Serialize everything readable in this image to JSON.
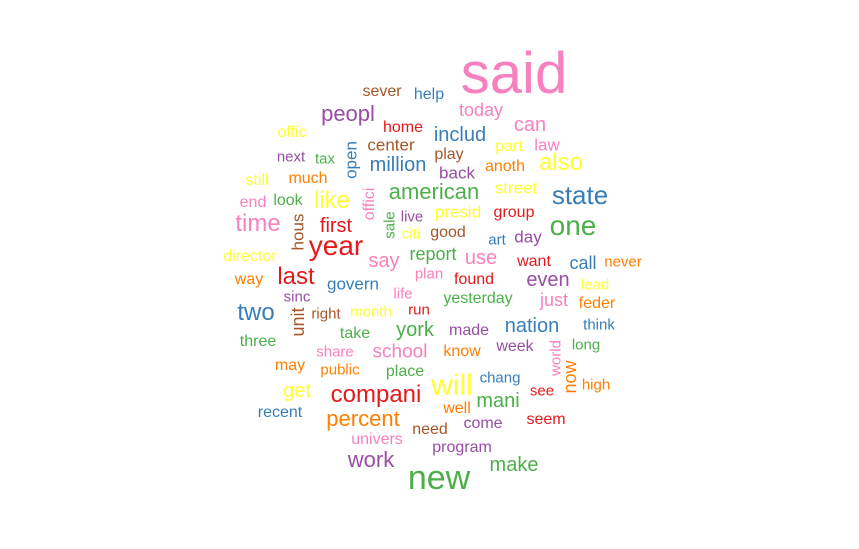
{
  "palette": {
    "pink": "#F781BF",
    "red": "#E41A1C",
    "blue": "#377EB8",
    "green": "#4DAF4A",
    "purple": "#984EA3",
    "orange": "#FF7F00",
    "yellow": "#FFFF33",
    "brown": "#A65628"
  },
  "words": [
    {
      "text": "said",
      "color": "pink"
    },
    {
      "text": "new",
      "color": "green"
    },
    {
      "text": "year",
      "color": "red"
    },
    {
      "text": "will",
      "color": "yellow"
    },
    {
      "text": "one",
      "color": "green"
    },
    {
      "text": "state",
      "color": "blue"
    },
    {
      "text": "compani",
      "color": "red"
    },
    {
      "text": "time",
      "color": "pink"
    },
    {
      "text": "also",
      "color": "yellow"
    },
    {
      "text": "american",
      "color": "green"
    },
    {
      "text": "two",
      "color": "blue"
    },
    {
      "text": "last",
      "color": "red"
    },
    {
      "text": "like",
      "color": "yellow"
    },
    {
      "text": "peopl",
      "color": "purple"
    },
    {
      "text": "percent",
      "color": "orange"
    },
    {
      "text": "work",
      "color": "purple"
    },
    {
      "text": "can",
      "color": "pink"
    },
    {
      "text": "million",
      "color": "blue"
    },
    {
      "text": "includ",
      "color": "blue"
    },
    {
      "text": "first",
      "color": "red"
    },
    {
      "text": "nation",
      "color": "blue"
    },
    {
      "text": "york",
      "color": "green"
    },
    {
      "text": "mani",
      "color": "green"
    },
    {
      "text": "school",
      "color": "pink"
    },
    {
      "text": "make",
      "color": "green"
    },
    {
      "text": "even",
      "color": "purple"
    },
    {
      "text": "say",
      "color": "pink"
    },
    {
      "text": "use",
      "color": "pink"
    },
    {
      "text": "report",
      "color": "green"
    },
    {
      "text": "today",
      "color": "pink"
    },
    {
      "text": "get",
      "color": "yellow"
    },
    {
      "text": "day",
      "color": "purple"
    },
    {
      "text": "call",
      "color": "blue"
    },
    {
      "text": "just",
      "color": "pink"
    },
    {
      "text": "back",
      "color": "purple"
    },
    {
      "text": "presid",
      "color": "yellow"
    },
    {
      "text": "street",
      "color": "yellow"
    },
    {
      "text": "law",
      "color": "pink"
    },
    {
      "text": "part",
      "color": "yellow"
    },
    {
      "text": "open",
      "color": "blue"
    },
    {
      "text": "hous",
      "color": "brown"
    },
    {
      "text": "unit",
      "color": "brown"
    },
    {
      "text": "now",
      "color": "orange"
    },
    {
      "text": "world",
      "color": "pink"
    },
    {
      "text": "govern",
      "color": "blue"
    },
    {
      "text": "center",
      "color": "brown"
    },
    {
      "text": "sever",
      "color": "brown"
    },
    {
      "text": "help",
      "color": "blue"
    },
    {
      "text": "home",
      "color": "red"
    },
    {
      "text": "play",
      "color": "brown"
    },
    {
      "text": "anoth",
      "color": "orange"
    },
    {
      "text": "offic",
      "color": "yellow"
    },
    {
      "text": "next",
      "color": "purple"
    },
    {
      "text": "tax",
      "color": "green"
    },
    {
      "text": "much",
      "color": "orange"
    },
    {
      "text": "still",
      "color": "yellow"
    },
    {
      "text": "end",
      "color": "pink"
    },
    {
      "text": "look",
      "color": "green"
    },
    {
      "text": "offici",
      "color": "pink"
    },
    {
      "text": "sale",
      "color": "green"
    },
    {
      "text": "live",
      "color": "purple"
    },
    {
      "text": "citi",
      "color": "yellow"
    },
    {
      "text": "good",
      "color": "brown"
    },
    {
      "text": "group",
      "color": "red"
    },
    {
      "text": "art",
      "color": "blue"
    },
    {
      "text": "director",
      "color": "yellow"
    },
    {
      "text": "way",
      "color": "orange"
    },
    {
      "text": "plan",
      "color": "pink"
    },
    {
      "text": "want",
      "color": "red"
    },
    {
      "text": "never",
      "color": "orange"
    },
    {
      "text": "found",
      "color": "red"
    },
    {
      "text": "lead",
      "color": "yellow"
    },
    {
      "text": "sinc",
      "color": "purple"
    },
    {
      "text": "life",
      "color": "pink"
    },
    {
      "text": "yesterday",
      "color": "green"
    },
    {
      "text": "feder",
      "color": "orange"
    },
    {
      "text": "right",
      "color": "brown"
    },
    {
      "text": "month",
      "color": "yellow"
    },
    {
      "text": "run",
      "color": "red"
    },
    {
      "text": "think",
      "color": "blue"
    },
    {
      "text": "take",
      "color": "green"
    },
    {
      "text": "made",
      "color": "purple"
    },
    {
      "text": "three",
      "color": "green"
    },
    {
      "text": "share",
      "color": "pink"
    },
    {
      "text": "know",
      "color": "orange"
    },
    {
      "text": "week",
      "color": "purple"
    },
    {
      "text": "long",
      "color": "green"
    },
    {
      "text": "may",
      "color": "orange"
    },
    {
      "text": "public",
      "color": "orange"
    },
    {
      "text": "place",
      "color": "green"
    },
    {
      "text": "chang",
      "color": "blue"
    },
    {
      "text": "see",
      "color": "red"
    },
    {
      "text": "high",
      "color": "orange"
    },
    {
      "text": "recent",
      "color": "blue"
    },
    {
      "text": "well",
      "color": "orange"
    },
    {
      "text": "seem",
      "color": "red"
    },
    {
      "text": "need",
      "color": "brown"
    },
    {
      "text": "come",
      "color": "purple"
    },
    {
      "text": "univers",
      "color": "pink"
    },
    {
      "text": "program",
      "color": "purple"
    }
  ]
}
